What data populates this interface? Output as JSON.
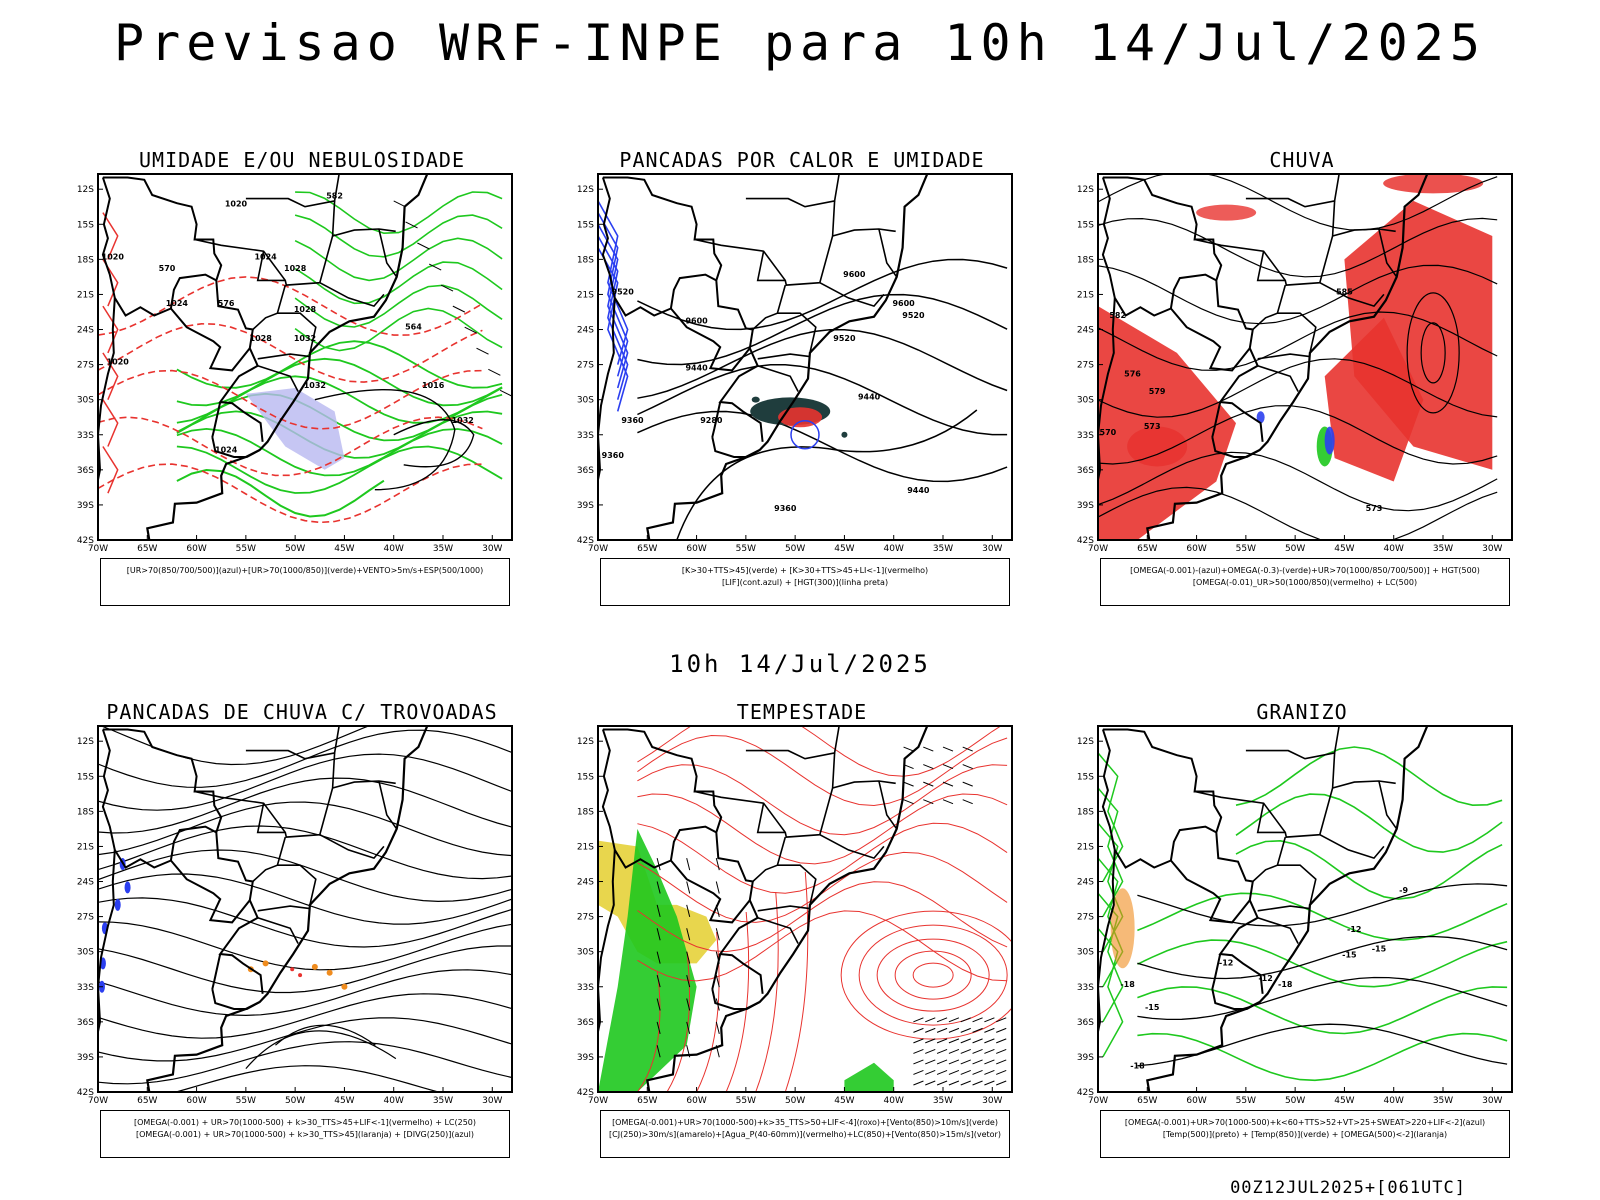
{
  "title": "Previsao WRF-INPE  para 10h 14/Jul/2025",
  "mid_title": "10h 14/Jul/2025",
  "footer": "00Z12JUL2025+[061UTC]",
  "axes": {
    "lat_labels": [
      "12S",
      "15S",
      "18S",
      "21S",
      "24S",
      "27S",
      "30S",
      "33S",
      "36S",
      "39S",
      "42S"
    ],
    "lon_labels": [
      "70W",
      "65W",
      "60W",
      "55W",
      "50W",
      "45W",
      "40W",
      "35W",
      "30W"
    ]
  },
  "colors": {
    "red": "#e8332f",
    "green": "#1ec81e",
    "blue": "#2b3ff0",
    "lavender": "#b8b8f0",
    "yellow": "#e6d23a",
    "orange": "#f08c1e",
    "dark": "#1f3d3d"
  },
  "panels": [
    {
      "id": "umidade",
      "title": "UMIDADE E/OU NEBULOSIDADE",
      "legend": [
        "[UR>70(850/700/500)](azul)+[UR>70(1000/850)](verde)+VENTO>5m/s+ESP(500/1000)"
      ],
      "contour_labels": [
        "1020",
        "1024",
        "1028",
        "1032",
        "1016",
        "1020",
        "1024",
        "1028",
        "1032",
        "1028",
        "1024",
        "1020",
        "1032",
        "570",
        "576",
        "564",
        "582"
      ]
    },
    {
      "id": "pancadas_calor",
      "title": "PANCADAS POR CALOR E UMIDADE",
      "legend": [
        "[K>30+TTS>45](verde) + [K>30+TTS>45+LI<-1](vermelho)",
        "[LIF](cont.azul) + [HGT(300)](linha preta)"
      ],
      "contour_labels": [
        "9600",
        "9520",
        "9600",
        "9440",
        "9520",
        "9360",
        "9440",
        "9280",
        "9360",
        "9360",
        "9520",
        "9600",
        "9440"
      ]
    },
    {
      "id": "chuva",
      "title": "CHUVA",
      "legend": [
        "[OMEGA(-0.001)-(azul)+OMEGA(-0.3)-(verde)+UR>70(1000/850/700/500)] + HGT(500)",
        "[OMEGA(-0.01)_UR>50(1000/850)(vermelho) + LC(500)"
      ],
      "contour_labels": [
        "582",
        "576",
        "579",
        "573",
        "570",
        "573",
        "585"
      ]
    },
    {
      "id": "trovoadas",
      "title": "PANCADAS DE CHUVA C/ TROVOADAS",
      "legend": [
        "[OMEGA(-0.001) + UR>70(1000-500) + k>30_TTS>45+LIF<-1](vermelho) + LC(250)",
        "[OMEGA(-0.001) + UR>70(1000-500) + k>30_TTS>45](laranja) + [DIVG(250)](azul)"
      ],
      "contour_labels": []
    },
    {
      "id": "tempestade",
      "title": "TEMPESTADE",
      "legend": [
        "[OMEGA(-0.001)+UR>70(1000-500)+k>35_TTS>50+LIF<-4](roxo)+[Vento(850)>10m/s](verde)",
        "[CJ(250)>30m/s](amarelo)+[Agua_P(40-60mm)](vermelho)+LC(850)+[Vento(850)>15m/s](vetor)"
      ],
      "contour_labels": []
    },
    {
      "id": "granizo",
      "title": "GRANIZO",
      "legend": [
        "[OMEGA(-0.001)+UR>70(1000-500)+k<60+TTS>52+VT>25+SWEAT>220+LIF<-2](azul)",
        "[Temp(500)](preto) + [Temp(850)](verde) + [OMEGA(500)<-2](laranja)"
      ],
      "contour_labels": [
        "-9",
        "-12",
        "-15",
        "-12",
        "-12",
        "-15",
        "-18",
        "-15",
        "-18",
        "-18"
      ]
    }
  ]
}
